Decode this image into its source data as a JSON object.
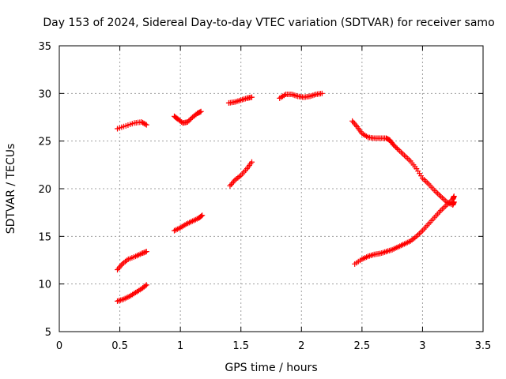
{
  "chart_data": {
    "type": "scatter",
    "title": "Day 153 of 2024, Sidereal Day-to-day VTEC variation (SDTVAR) for receiver samo",
    "xlabel": "GPS time / hours",
    "ylabel": "SDTVAR / TECUs",
    "xlim": [
      0,
      3.5
    ],
    "ylim": [
      5,
      35
    ],
    "x_ticks": [
      0,
      0.5,
      1,
      1.5,
      2,
      2.5,
      3,
      3.5
    ],
    "x_tick_labels": [
      "0",
      "0.5",
      "1",
      "1.5",
      "2",
      "2.5",
      "3",
      "3.5"
    ],
    "y_ticks": [
      5,
      10,
      15,
      20,
      25,
      30,
      35
    ],
    "y_tick_labels": [
      "5",
      "10",
      "15",
      "20",
      "25",
      "30",
      "35"
    ],
    "grid": true,
    "marker": "plus",
    "series_color": "#ff0000",
    "arcs": [
      [
        [
          0.48,
          26.3
        ],
        [
          0.55,
          26.6
        ],
        [
          0.62,
          26.9
        ],
        [
          0.68,
          27.0
        ],
        [
          0.72,
          26.7
        ]
      ],
      [
        [
          0.48,
          11.5
        ],
        [
          0.52,
          12.1
        ],
        [
          0.57,
          12.6
        ],
        [
          0.63,
          12.9
        ],
        [
          0.68,
          13.2
        ],
        [
          0.72,
          13.4
        ]
      ],
      [
        [
          0.48,
          8.2
        ],
        [
          0.53,
          8.4
        ],
        [
          0.58,
          8.7
        ],
        [
          0.63,
          9.1
        ],
        [
          0.68,
          9.5
        ],
        [
          0.72,
          9.9
        ]
      ],
      [
        [
          0.95,
          27.6
        ],
        [
          0.98,
          27.3
        ],
        [
          1.02,
          26.9
        ],
        [
          1.06,
          27.0
        ],
        [
          1.1,
          27.5
        ],
        [
          1.14,
          27.9
        ],
        [
          1.17,
          28.1
        ]
      ],
      [
        [
          0.95,
          15.6
        ],
        [
          1.0,
          15.9
        ],
        [
          1.05,
          16.3
        ],
        [
          1.1,
          16.6
        ],
        [
          1.15,
          16.9
        ],
        [
          1.18,
          17.2
        ]
      ],
      [
        [
          1.4,
          29.0
        ],
        [
          1.45,
          29.1
        ],
        [
          1.5,
          29.3
        ],
        [
          1.55,
          29.5
        ],
        [
          1.59,
          29.6
        ]
      ],
      [
        [
          1.41,
          20.3
        ],
        [
          1.45,
          20.9
        ],
        [
          1.5,
          21.4
        ],
        [
          1.55,
          22.1
        ],
        [
          1.59,
          22.8
        ]
      ],
      [
        [
          1.82,
          29.5
        ],
        [
          1.87,
          29.9
        ],
        [
          1.92,
          29.9
        ],
        [
          1.97,
          29.7
        ],
        [
          2.02,
          29.6
        ],
        [
          2.07,
          29.7
        ],
        [
          2.12,
          29.9
        ],
        [
          2.17,
          30.0
        ]
      ],
      [
        [
          2.42,
          27.1
        ],
        [
          2.46,
          26.5
        ],
        [
          2.5,
          25.8
        ],
        [
          2.55,
          25.4
        ],
        [
          2.6,
          25.3
        ],
        [
          2.65,
          25.3
        ],
        [
          2.7,
          25.3
        ],
        [
          2.73,
          25.1
        ],
        [
          2.76,
          24.6
        ],
        [
          2.8,
          24.1
        ],
        [
          2.85,
          23.5
        ],
        [
          2.9,
          22.9
        ],
        [
          2.95,
          22.1
        ],
        [
          3.0,
          21.1
        ],
        [
          3.05,
          20.5
        ],
        [
          3.1,
          19.8
        ],
        [
          3.15,
          19.2
        ],
        [
          3.2,
          18.6
        ],
        [
          3.25,
          18.3
        ],
        [
          3.26,
          18.6
        ]
      ],
      [
        [
          2.44,
          12.1
        ],
        [
          2.5,
          12.6
        ],
        [
          2.55,
          12.9
        ],
        [
          2.6,
          13.1
        ],
        [
          2.65,
          13.2
        ],
        [
          2.7,
          13.4
        ],
        [
          2.75,
          13.6
        ],
        [
          2.8,
          13.9
        ],
        [
          2.85,
          14.2
        ],
        [
          2.9,
          14.5
        ],
        [
          2.95,
          15.0
        ],
        [
          3.0,
          15.6
        ],
        [
          3.05,
          16.3
        ],
        [
          3.1,
          17.0
        ],
        [
          3.15,
          17.7
        ],
        [
          3.2,
          18.3
        ],
        [
          3.25,
          18.9
        ],
        [
          3.26,
          19.2
        ]
      ]
    ]
  }
}
